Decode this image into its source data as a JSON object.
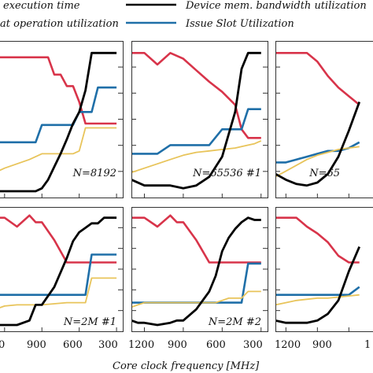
{
  "chart_data": {
    "type": "line",
    "xlabel": "Core clock frequency [MHz]",
    "x_ticks": [
      "1200",
      "900",
      "600",
      "300"
    ],
    "x_ticks_partial_left": "0",
    "x_ticks_partial_right": "1",
    "legend": [
      {
        "label": "execution time",
        "color": "#ffffff"
      },
      {
        "label": "Device mem. bandwidth utilization",
        "color": "#000000"
      },
      {
        "label": "at operation utilization",
        "color": "#e8c45a"
      },
      {
        "label": "Issue Slot Utilization",
        "color": "#1f6fa8"
      }
    ],
    "colors": {
      "black": "#000000",
      "red": "#d8344a",
      "blue": "#1f6fa8",
      "yellow": "#e8c45a"
    },
    "xlim": [
      1300,
      250
    ],
    "ylim": [
      0,
      1
    ],
    "panels": [
      {
        "label": "N=8192",
        "series": [
          {
            "color": "red",
            "x": [
              1300,
              1250,
              1200,
              1100,
              1000,
              950,
              900,
              850,
              800,
              750,
              700,
              650,
              600,
              550,
              500,
              450,
              400,
              350,
              300
            ],
            "y": [
              0.93,
              0.93,
              0.93,
              0.93,
              0.93,
              0.93,
              0.93,
              0.93,
              0.81,
              0.81,
              0.73,
              0.73,
              0.62,
              0.47,
              0.47,
              0.47,
              0.47,
              0.47,
              0.47
            ]
          },
          {
            "color": "blue",
            "x": [
              1300,
              1250,
              1200,
              1100,
              1000,
              950,
              900,
              850,
              800,
              750,
              700,
              650,
              600,
              550,
              500,
              450,
              400,
              350,
              300
            ],
            "y": [
              0.34,
              0.34,
              0.34,
              0.34,
              0.34,
              0.34,
              0.46,
              0.46,
              0.46,
              0.46,
              0.46,
              0.46,
              0.55,
              0.55,
              0.55,
              0.72,
              0.72,
              0.72,
              0.72
            ]
          },
          {
            "color": "yellow",
            "x": [
              1300,
              1250,
              1200,
              1100,
              1000,
              950,
              900,
              850,
              800,
              750,
              700,
              650,
              600,
              550,
              500,
              450,
              400,
              350,
              300
            ],
            "y": [
              0.12,
              0.14,
              0.16,
              0.19,
              0.22,
              0.24,
              0.26,
              0.26,
              0.26,
              0.26,
              0.26,
              0.26,
              0.28,
              0.44,
              0.44,
              0.44,
              0.44,
              0.44,
              0.44
            ]
          },
          {
            "color": "black",
            "x": [
              1300,
              1250,
              1200,
              1100,
              1000,
              950,
              900,
              850,
              800,
              750,
              700,
              650,
              600,
              550,
              500,
              450,
              400,
              350,
              300
            ],
            "y": [
              0.0,
              0.0,
              0.0,
              0.0,
              0.0,
              0.0,
              0.02,
              0.08,
              0.17,
              0.26,
              0.36,
              0.47,
              0.55,
              0.7,
              0.96,
              0.96,
              0.96,
              0.96,
              0.96
            ]
          }
        ]
      },
      {
        "label": "N=65536 #1",
        "series": [
          {
            "color": "red",
            "x": [
              1300,
              1200,
              1100,
              1000,
              900,
              800,
              700,
              600,
              500,
              450,
              400,
              350,
              300
            ],
            "y": [
              0.96,
              0.96,
              0.88,
              0.96,
              0.92,
              0.84,
              0.76,
              0.69,
              0.6,
              0.43,
              0.37,
              0.37,
              0.37
            ]
          },
          {
            "color": "blue",
            "x": [
              1300,
              1200,
              1100,
              1000,
              900,
              800,
              700,
              600,
              500,
              450,
              400,
              350,
              300
            ],
            "y": [
              0.26,
              0.26,
              0.26,
              0.32,
              0.32,
              0.32,
              0.32,
              0.43,
              0.43,
              0.43,
              0.57,
              0.57,
              0.57
            ]
          },
          {
            "color": "yellow",
            "x": [
              1300,
              1200,
              1100,
              1000,
              900,
              800,
              700,
              600,
              500,
              450,
              400,
              350,
              300
            ],
            "y": [
              0.13,
              0.16,
              0.19,
              0.22,
              0.25,
              0.27,
              0.28,
              0.29,
              0.3,
              0.31,
              0.32,
              0.33,
              0.35
            ]
          },
          {
            "color": "black",
            "x": [
              1300,
              1200,
              1100,
              1000,
              900,
              800,
              700,
              600,
              500,
              450,
              400,
              350,
              300
            ],
            "y": [
              0.08,
              0.04,
              0.04,
              0.04,
              0.02,
              0.04,
              0.1,
              0.24,
              0.55,
              0.85,
              0.96,
              0.96,
              0.96
            ]
          }
        ]
      },
      {
        "label": "N=65",
        "series": [
          {
            "color": "red",
            "x": [
              1300,
              1200,
              1100,
              1000,
              900,
              800,
              700,
              600,
              500
            ],
            "y": [
              0.96,
              0.96,
              0.96,
              0.96,
              0.9,
              0.8,
              0.72,
              0.66,
              0.6
            ]
          },
          {
            "color": "blue",
            "x": [
              1300,
              1200,
              1100,
              1000,
              900,
              800,
              700,
              600,
              500
            ],
            "y": [
              0.2,
              0.2,
              0.22,
              0.24,
              0.26,
              0.28,
              0.28,
              0.3,
              0.34
            ]
          },
          {
            "color": "yellow",
            "x": [
              1300,
              1200,
              1100,
              1000,
              900,
              800,
              700,
              600,
              500
            ],
            "y": [
              0.1,
              0.14,
              0.18,
              0.22,
              0.25,
              0.27,
              0.29,
              0.3,
              0.31
            ]
          },
          {
            "color": "black",
            "x": [
              1300,
              1200,
              1100,
              1000,
              900,
              800,
              700,
              600,
              500
            ],
            "y": [
              0.12,
              0.08,
              0.05,
              0.04,
              0.06,
              0.12,
              0.24,
              0.42,
              0.62
            ]
          }
        ]
      },
      {
        "label": "N=2M #1",
        "series": [
          {
            "color": "red",
            "x": [
              1300,
              1250,
              1200,
              1100,
              1000,
              950,
              900,
              800,
              700,
              650,
              600,
              550,
              500,
              450,
              400,
              350,
              300
            ],
            "y": [
              0.96,
              0.96,
              0.96,
              0.88,
              0.98,
              0.92,
              0.92,
              0.76,
              0.56,
              0.56,
              0.56,
              0.56,
              0.56,
              0.56,
              0.56,
              0.56,
              0.56
            ]
          },
          {
            "color": "blue",
            "x": [
              1300,
              1250,
              1200,
              1100,
              1000,
              950,
              900,
              800,
              700,
              650,
              600,
              550,
              500,
              450,
              400,
              350,
              300
            ],
            "y": [
              0.27,
              0.27,
              0.27,
              0.27,
              0.27,
              0.27,
              0.27,
              0.27,
              0.27,
              0.27,
              0.27,
              0.27,
              0.63,
              0.63,
              0.63,
              0.63,
              0.63
            ]
          },
          {
            "color": "yellow",
            "x": [
              1300,
              1250,
              1200,
              1100,
              1000,
              950,
              900,
              800,
              700,
              650,
              600,
              550,
              500,
              450,
              400,
              350,
              300
            ],
            "y": [
              0.13,
              0.15,
              0.17,
              0.18,
              0.18,
              0.18,
              0.18,
              0.19,
              0.2,
              0.2,
              0.2,
              0.2,
              0.42,
              0.42,
              0.42,
              0.42,
              0.42
            ]
          },
          {
            "color": "black",
            "x": [
              1300,
              1250,
              1200,
              1100,
              1000,
              950,
              900,
              800,
              700,
              650,
              600,
              550,
              500,
              450,
              400,
              350,
              300
            ],
            "y": [
              0.0,
              0.0,
              0.0,
              0.0,
              0.04,
              0.18,
              0.18,
              0.34,
              0.6,
              0.75,
              0.83,
              0.87,
              0.91,
              0.91,
              0.96,
              0.96,
              0.96
            ]
          }
        ]
      },
      {
        "label": "N=2M #2",
        "series": [
          {
            "color": "red",
            "x": [
              1300,
              1250,
              1200,
              1100,
              1000,
              950,
              900,
              800,
              700,
              650,
              600,
              550,
              500,
              450,
              400,
              350,
              300
            ],
            "y": [
              0.96,
              0.96,
              0.96,
              0.88,
              0.98,
              0.92,
              0.92,
              0.76,
              0.56,
              0.56,
              0.56,
              0.56,
              0.56,
              0.56,
              0.56,
              0.56,
              0.56
            ]
          },
          {
            "color": "blue",
            "x": [
              1300,
              1250,
              1200,
              1100,
              1000,
              950,
              900,
              800,
              700,
              650,
              600,
              550,
              500,
              450,
              400,
              350,
              300
            ],
            "y": [
              0.2,
              0.2,
              0.2,
              0.2,
              0.2,
              0.2,
              0.2,
              0.2,
              0.2,
              0.2,
              0.2,
              0.2,
              0.2,
              0.2,
              0.55,
              0.55,
              0.55
            ]
          },
          {
            "color": "yellow",
            "x": [
              1300,
              1250,
              1200,
              1100,
              1000,
              950,
              900,
              800,
              700,
              650,
              600,
              550,
              500,
              450,
              400,
              350,
              300
            ],
            "y": [
              0.16,
              0.18,
              0.2,
              0.2,
              0.2,
              0.2,
              0.2,
              0.2,
              0.2,
              0.2,
              0.22,
              0.24,
              0.24,
              0.24,
              0.3,
              0.3,
              0.3
            ]
          },
          {
            "color": "black",
            "x": [
              1300,
              1250,
              1200,
              1100,
              1000,
              950,
              900,
              800,
              700,
              650,
              600,
              550,
              500,
              450,
              400,
              350,
              300
            ],
            "y": [
              0.04,
              0.02,
              0.02,
              0.0,
              0.02,
              0.04,
              0.04,
              0.14,
              0.3,
              0.44,
              0.66,
              0.78,
              0.86,
              0.92,
              0.96,
              0.94,
              0.94
            ]
          }
        ]
      },
      {
        "label": "",
        "series": [
          {
            "color": "red",
            "x": [
              1300,
              1200,
              1100,
              1000,
              900,
              800,
              700,
              600,
              500
            ],
            "y": [
              0.96,
              0.96,
              0.96,
              0.88,
              0.82,
              0.74,
              0.62,
              0.56,
              0.56
            ]
          },
          {
            "color": "blue",
            "x": [
              1300,
              1200,
              1100,
              1000,
              900,
              800,
              700,
              600,
              500
            ],
            "y": [
              0.27,
              0.27,
              0.27,
              0.27,
              0.27,
              0.27,
              0.27,
              0.27,
              0.34
            ]
          },
          {
            "color": "yellow",
            "x": [
              1300,
              1200,
              1100,
              1000,
              900,
              800,
              700,
              600,
              500
            ],
            "y": [
              0.18,
              0.2,
              0.22,
              0.23,
              0.24,
              0.24,
              0.25,
              0.26,
              0.27
            ]
          },
          {
            "color": "black",
            "x": [
              1300,
              1200,
              1100,
              1000,
              900,
              800,
              700,
              600,
              500
            ],
            "y": [
              0.04,
              0.02,
              0.02,
              0.02,
              0.04,
              0.1,
              0.22,
              0.48,
              0.7
            ]
          }
        ]
      }
    ]
  }
}
